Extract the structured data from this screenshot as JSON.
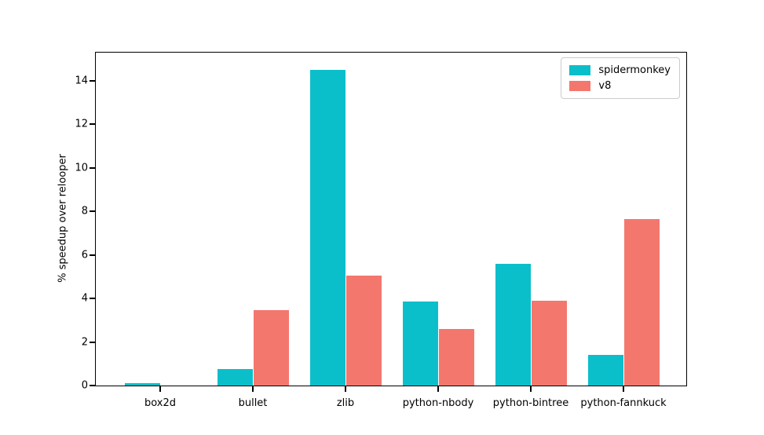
{
  "figure": {
    "background": "#ffffff"
  },
  "chart_data": {
    "type": "bar",
    "title": "",
    "xlabel": "",
    "ylabel": "% speedup over relooper",
    "categories": [
      "box2d",
      "bullet",
      "zlib",
      "python-nbody",
      "python-bintree",
      "python-fannkuck"
    ],
    "series": [
      {
        "name": "spidermonkey",
        "color": "#0bbfca",
        "values": [
          0.1,
          0.75,
          14.5,
          3.85,
          5.6,
          1.4
        ]
      },
      {
        "name": "v8",
        "color": "#f4776e",
        "values": [
          0.0,
          3.45,
          5.05,
          2.6,
          3.9,
          7.65
        ]
      }
    ],
    "ylim": [
      0,
      15.3
    ],
    "yticks": [
      0,
      2,
      4,
      6,
      8,
      10,
      12,
      14
    ],
    "grid": false,
    "legend_position": "upper right",
    "axis_color": "#000000",
    "legend_border_color": "#cccccc"
  }
}
